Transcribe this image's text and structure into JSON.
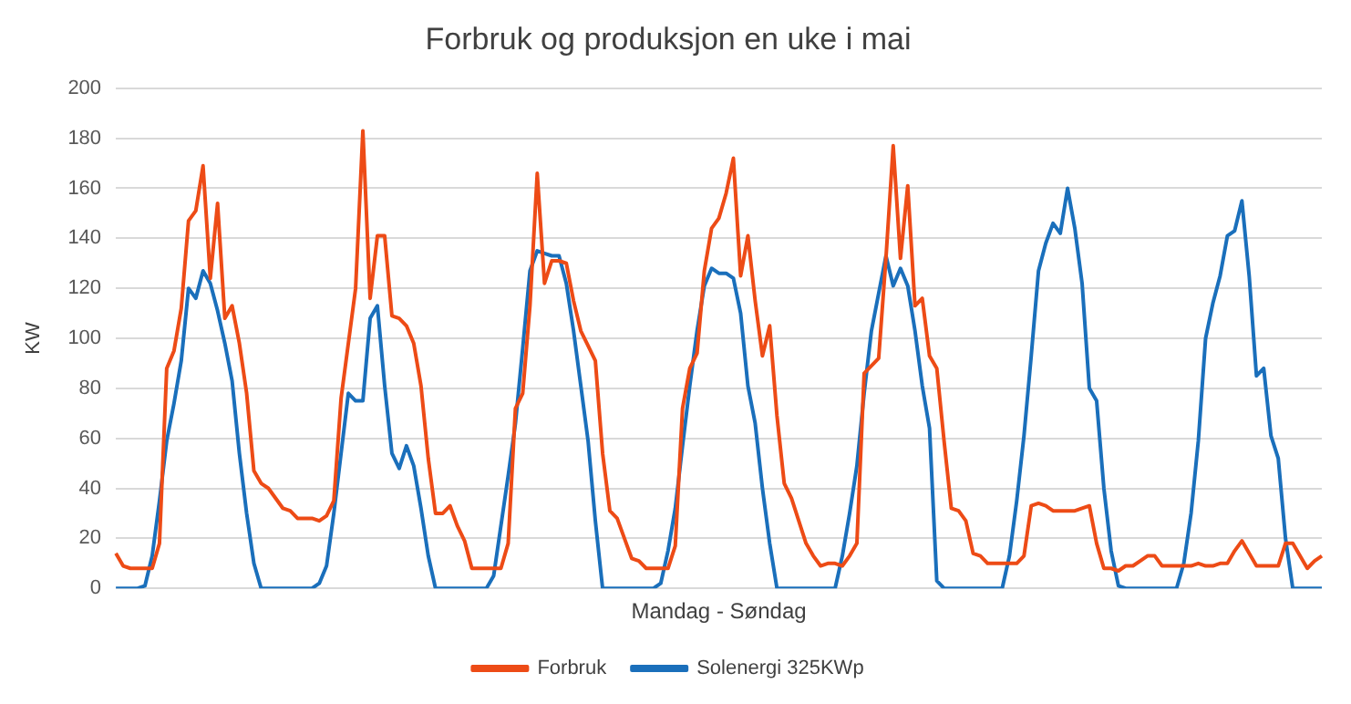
{
  "chart_data": {
    "type": "line",
    "title": "Forbruk og produksjon en uke i mai",
    "xlabel": "Mandag - Søndag",
    "ylabel": "KW",
    "categories": [
      null,
      null,
      null,
      null,
      null,
      null,
      null,
      null,
      null,
      null,
      null,
      null,
      null,
      null,
      null,
      null,
      null,
      null,
      null,
      null,
      null,
      null,
      null,
      null,
      null,
      null,
      null,
      null,
      null,
      null,
      null,
      null,
      null,
      null,
      null,
      null,
      null,
      null,
      null,
      null,
      null,
      null,
      null,
      null,
      null,
      null,
      null,
      null,
      null,
      null,
      null,
      null,
      null,
      null,
      null,
      null,
      null,
      null,
      null,
      null,
      null,
      null,
      null,
      null,
      null,
      null,
      null,
      null,
      null,
      null,
      null,
      null,
      null,
      null,
      null,
      null,
      null,
      null,
      null,
      null,
      null,
      null,
      null,
      null,
      null,
      null,
      null,
      null,
      null,
      null,
      null,
      null,
      null,
      null,
      null,
      null,
      null,
      null,
      null,
      null,
      null,
      null,
      null,
      null,
      null,
      null,
      null,
      null,
      null,
      null,
      null,
      null,
      null,
      null,
      null,
      null,
      null,
      null,
      null,
      null,
      null,
      null,
      null,
      null,
      null,
      null,
      null,
      null,
      null,
      null,
      null,
      null,
      null,
      null,
      null,
      null,
      null,
      null,
      null,
      null,
      null,
      null,
      null,
      null,
      null,
      null,
      null,
      null,
      null,
      null,
      null,
      null,
      null,
      null,
      null,
      null,
      null,
      null,
      null,
      null,
      null,
      null,
      null,
      null,
      null,
      null,
      null
    ],
    "series": [
      {
        "name": "Forbruk",
        "color": "#ed4b16",
        "values": [
          14,
          9,
          8,
          8,
          8,
          8,
          18,
          88,
          95,
          112,
          147,
          151,
          169,
          124,
          154,
          108,
          113,
          98,
          78,
          47,
          42,
          40,
          36,
          32,
          31,
          28,
          28,
          28,
          27,
          29,
          35,
          76,
          98,
          120,
          183,
          116,
          141,
          141,
          109,
          108,
          105,
          98,
          81,
          52,
          30,
          30,
          33,
          25,
          19,
          8,
          8,
          8,
          8,
          8,
          18,
          72,
          78,
          113,
          166,
          122,
          131,
          131,
          130,
          115,
          103,
          97,
          91,
          54,
          31,
          28,
          20,
          12,
          11,
          8,
          8,
          8,
          8,
          17,
          72,
          88,
          94,
          127,
          144,
          148,
          158,
          172,
          125,
          141,
          115,
          93,
          105,
          69,
          42,
          36,
          27,
          18,
          13,
          9,
          10,
          10,
          9,
          13,
          18,
          86,
          89,
          92,
          132,
          177,
          132,
          161,
          113,
          116,
          93,
          88,
          59,
          32,
          31,
          27,
          14,
          13,
          10,
          10,
          10,
          10,
          10,
          13,
          33,
          34,
          33,
          31,
          31,
          31,
          31,
          32,
          33,
          18,
          8,
          8,
          7,
          9,
          9,
          11,
          13,
          13,
          9,
          9,
          9,
          9,
          9,
          10,
          9,
          9,
          10,
          10,
          15,
          19,
          14,
          9,
          9,
          9,
          9,
          18,
          18,
          13,
          8,
          11,
          13
        ]
      },
      {
        "name": "Solenergi 325KWp",
        "color": "#1a6fbb",
        "values": [
          0,
          0,
          0,
          0,
          1,
          13,
          35,
          59,
          74,
          91,
          120,
          116,
          127,
          122,
          111,
          98,
          83,
          54,
          30,
          10,
          0,
          0,
          0,
          0,
          0,
          0,
          0,
          0,
          2,
          9,
          30,
          54,
          78,
          75,
          75,
          108,
          113,
          81,
          54,
          48,
          57,
          49,
          32,
          13,
          0,
          0,
          0,
          0,
          0,
          0,
          0,
          0,
          5,
          25,
          45,
          66,
          96,
          127,
          135,
          134,
          133,
          133,
          122,
          103,
          81,
          59,
          27,
          0,
          0,
          0,
          0,
          0,
          0,
          0,
          0,
          2,
          15,
          32,
          57,
          81,
          103,
          121,
          128,
          126,
          126,
          124,
          110,
          81,
          66,
          40,
          18,
          0,
          0,
          0,
          0,
          0,
          0,
          0,
          0,
          0,
          13,
          30,
          49,
          78,
          103,
          118,
          133,
          121,
          128,
          121,
          103,
          81,
          64,
          3,
          0,
          0,
          0,
          0,
          0,
          0,
          0,
          0,
          0,
          13,
          35,
          61,
          93,
          127,
          138,
          146,
          142,
          160,
          144,
          122,
          80,
          75,
          40,
          15,
          1,
          0,
          0,
          0,
          0,
          0,
          0,
          0,
          0,
          10,
          30,
          59,
          100,
          114,
          125,
          141,
          143,
          155,
          125,
          85,
          88,
          61,
          52,
          20,
          0,
          0,
          0,
          0,
          0
        ]
      }
    ],
    "ylim": [
      0,
      200
    ],
    "yticks": [
      0,
      20,
      40,
      60,
      80,
      100,
      120,
      140,
      160,
      180,
      200
    ],
    "grid": "y",
    "legend": "bottom",
    "tick_labels": "y",
    "marker": "none",
    "line_style": "solid"
  }
}
